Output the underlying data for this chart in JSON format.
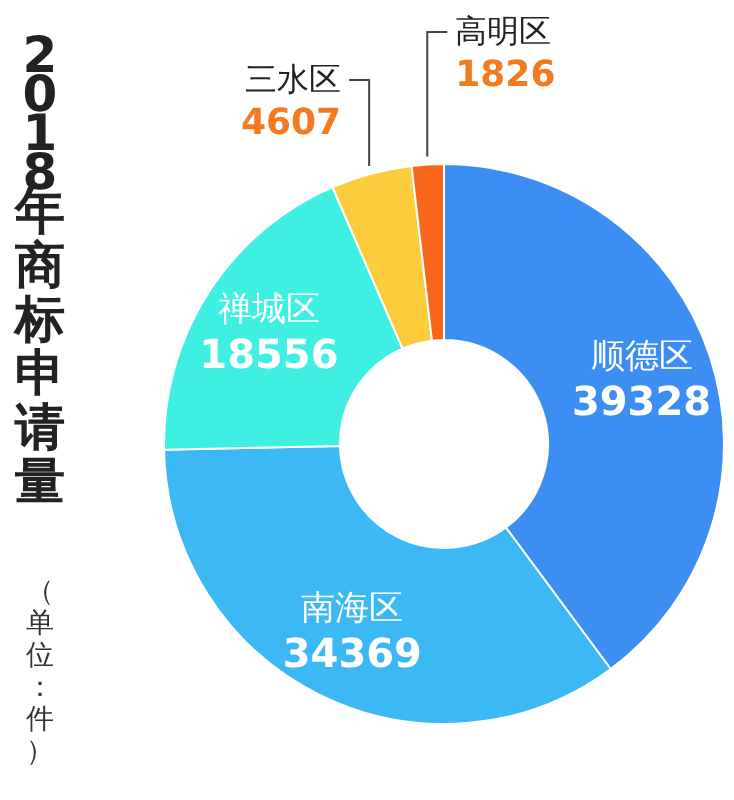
{
  "chart_data": {
    "type": "donut",
    "title": "2018年商标申请量",
    "subtitle": "（单位：件）",
    "categories": [
      "顺德区",
      "南海区",
      "禅城区",
      "三水区",
      "高明区"
    ],
    "values": [
      39328,
      34369,
      18556,
      4607,
      1826
    ],
    "colors": [
      "#3d8ef2",
      "#3cb8f4",
      "#3fefe2",
      "#fccc3c",
      "#f8661c"
    ],
    "data_labels": true
  }
}
